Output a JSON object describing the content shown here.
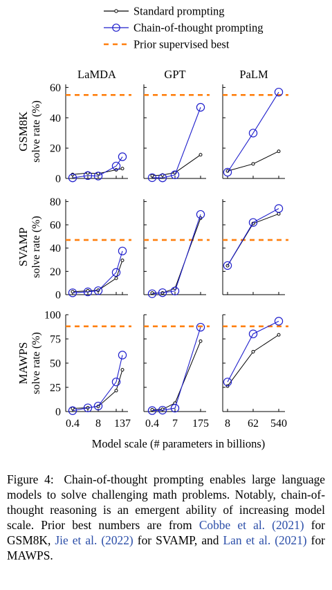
{
  "legend": {
    "entries": [
      {
        "label": "Standard prompting",
        "color": "#000000",
        "marker": "dot",
        "dash": "solid"
      },
      {
        "label": "Chain-of-thought prompting",
        "color": "#1f1fcc",
        "marker": "circle",
        "dash": "solid"
      },
      {
        "label": "Prior supervised best",
        "color": "#ff7f0e",
        "marker": "none",
        "dash": "dashed"
      }
    ]
  },
  "x_axis_label": "Model scale (# parameters in billions)",
  "colors": {
    "standard": "#000000",
    "cot": "#1f1fcc",
    "prior": "#ff7f0e"
  },
  "chart_data": [
    {
      "type": "line",
      "dataset": "GSM8K",
      "model": "LaMDA",
      "ylabel": "solve rate (%)",
      "ylim": [
        0,
        62
      ],
      "yticks": [
        0,
        20,
        40,
        60
      ],
      "categories": [
        "0.4",
        "2",
        "8",
        "68",
        "137"
      ],
      "xticklabels": [],
      "series": [
        {
          "name": "Standard prompting",
          "values": [
            2.6,
            3.6,
            3.2,
            5.7,
            6.5
          ]
        },
        {
          "name": "Chain-of-thought prompting",
          "values": [
            0.4,
            1.9,
            1.6,
            8.2,
            14.3
          ]
        }
      ],
      "prior_best": 55
    },
    {
      "type": "line",
      "dataset": "GSM8K",
      "model": "GPT",
      "ylabel": "",
      "ylim": [
        0,
        62
      ],
      "yticks": [],
      "categories": [
        "0.4",
        "1.3",
        "7",
        "175"
      ],
      "xticklabels": [],
      "series": [
        {
          "name": "Standard prompting",
          "values": [
            1.8,
            2.3,
            3.8,
            15.6
          ]
        },
        {
          "name": "Chain-of-thought prompting",
          "values": [
            0.5,
            0.4,
            2.4,
            46.9
          ]
        }
      ],
      "prior_best": 55
    },
    {
      "type": "line",
      "dataset": "GSM8K",
      "model": "PaLM",
      "ylabel": "",
      "ylim": [
        0,
        62
      ],
      "yticks": [],
      "categories": [
        "8",
        "62",
        "540"
      ],
      "xticklabels": [],
      "series": [
        {
          "name": "Standard prompting",
          "values": [
            4.9,
            9.6,
            17.9
          ]
        },
        {
          "name": "Chain-of-thought prompting",
          "values": [
            4.1,
            29.9,
            56.9
          ]
        }
      ],
      "prior_best": 55
    },
    {
      "type": "line",
      "dataset": "SVAMP",
      "model": "LaMDA",
      "ylabel": "solve rate (%)",
      "ylim": [
        0,
        82
      ],
      "yticks": [
        0,
        20,
        40,
        60,
        80
      ],
      "categories": [
        "0.4",
        "2",
        "8",
        "68",
        "137"
      ],
      "xticklabels": [],
      "series": [
        {
          "name": "Standard prompting",
          "values": [
            2.5,
            3.3,
            3.8,
            14.1,
            29.5
          ]
        },
        {
          "name": "Chain-of-thought prompting",
          "values": [
            1.6,
            2.4,
            3.4,
            19.1,
            37.5
          ]
        }
      ],
      "prior_best": 47
    },
    {
      "type": "line",
      "dataset": "SVAMP",
      "model": "GPT",
      "ylabel": "",
      "ylim": [
        0,
        82
      ],
      "yticks": [],
      "categories": [
        "0.4",
        "1.3",
        "7",
        "175"
      ],
      "xticklabels": [],
      "series": [
        {
          "name": "Standard prompting",
          "values": [
            1.4,
            1.5,
            5.4,
            65.7
          ]
        },
        {
          "name": "Chain-of-thought prompting",
          "values": [
            0.8,
            1.7,
            3.1,
            68.9
          ]
        }
      ],
      "prior_best": 47
    },
    {
      "type": "line",
      "dataset": "SVAMP",
      "model": "PaLM",
      "ylabel": "",
      "ylim": [
        0,
        82
      ],
      "yticks": [],
      "categories": [
        "8",
        "62",
        "540"
      ],
      "xticklabels": [],
      "series": [
        {
          "name": "Standard prompting",
          "values": [
            24.9,
            61.1,
            69.4
          ]
        },
        {
          "name": "Chain-of-thought prompting",
          "values": [
            25.0,
            62.0,
            74.0
          ]
        }
      ],
      "prior_best": 47
    },
    {
      "type": "line",
      "dataset": "MAWPS",
      "model": "LaMDA",
      "ylabel": "solve rate (%)",
      "ylim": [
        0,
        100
      ],
      "yticks": [
        0,
        25,
        50,
        75,
        100
      ],
      "categories": [
        "0.4",
        "2",
        "8",
        "68",
        "137"
      ],
      "xticklabels": [
        "0.4",
        "8",
        "137"
      ],
      "series": [
        {
          "name": "Standard prompting",
          "values": [
            3.2,
            3.9,
            5.3,
            21.6,
            43.1
          ]
        },
        {
          "name": "Chain-of-thought prompting",
          "values": [
            0.9,
            3.8,
            5.7,
            30.6,
            58.3
          ]
        }
      ],
      "prior_best": 88
    },
    {
      "type": "line",
      "dataset": "MAWPS",
      "model": "GPT",
      "ylabel": "",
      "ylim": [
        0,
        100
      ],
      "yticks": [],
      "categories": [
        "0.4",
        "1.3",
        "7",
        "175"
      ],
      "xticklabels": [
        "0.4",
        "7",
        "175"
      ],
      "series": [
        {
          "name": "Standard prompting",
          "values": [
            1.9,
            2.3,
            8.7,
            72.7
          ]
        },
        {
          "name": "Chain-of-thought prompting",
          "values": [
            1.0,
            1.4,
            3.5,
            87.1
          ]
        }
      ],
      "prior_best": 88
    },
    {
      "type": "line",
      "dataset": "MAWPS",
      "model": "PaLM",
      "ylabel": "",
      "ylim": [
        0,
        100
      ],
      "yticks": [],
      "categories": [
        "8",
        "62",
        "540"
      ],
      "xticklabels": [
        "8",
        "62",
        "540"
      ],
      "series": [
        {
          "name": "Standard prompting",
          "values": [
            26.3,
            61.8,
            79.2
          ]
        },
        {
          "name": "Chain-of-thought prompting",
          "values": [
            30.5,
            80.2,
            93.3
          ]
        }
      ],
      "prior_best": 88
    }
  ],
  "caption": {
    "label": "Figure 4:",
    "text": "Chain-of-thought prompting enables large language models to solve challenging math problems. Notably, chain-of-thought reasoning is an emergent ability of increasing model scale. Prior best numbers are from ",
    "cite1": "Cobbe et al. (2021)",
    "mid1": " for GSM8K, ",
    "cite2": "Jie et al. (2022)",
    "mid2": " for SVAMP, and ",
    "cite3": "Lan et al. (2021)",
    "end": " for MAWPS."
  }
}
